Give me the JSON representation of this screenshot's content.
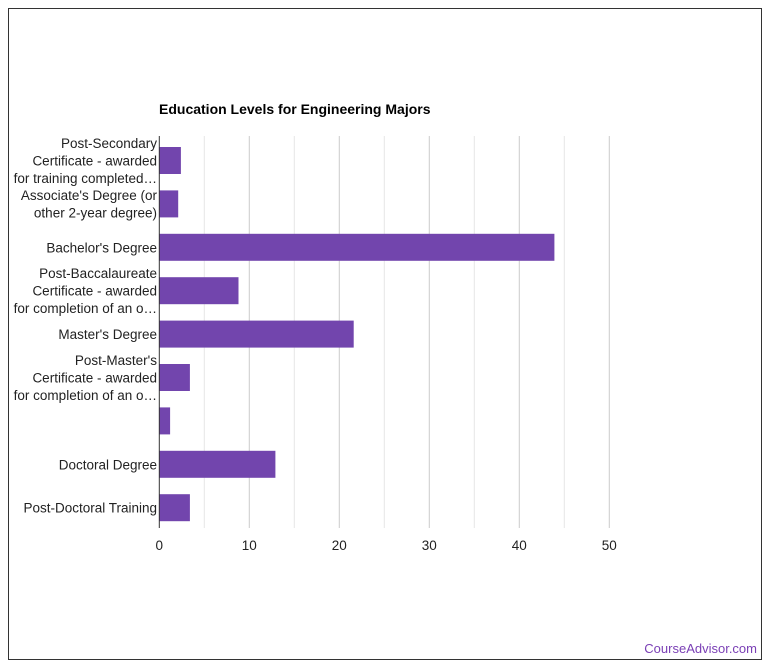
{
  "chart_data": {
    "type": "bar",
    "orientation": "horizontal",
    "title": "Education Levels for Engineering Majors",
    "categories": [
      [
        "Post-Secondary",
        "Certificate - awarded",
        "for training completed…"
      ],
      [
        "Associate's Degree (or",
        "other 2-year degree)"
      ],
      [
        "Bachelor's Degree"
      ],
      [
        "Post-Baccalaureate",
        "Certificate - awarded",
        "for completion of an o…"
      ],
      [
        "Master's Degree"
      ],
      [
        "Post-Master's",
        "Certificate - awarded",
        "for completion of an o…"
      ],
      [],
      [
        "Doctoral Degree"
      ],
      [
        "Post-Doctoral Training"
      ]
    ],
    "values": [
      2.4,
      2.1,
      43.9,
      8.8,
      21.6,
      3.4,
      1.2,
      12.9,
      3.4
    ],
    "xlim": [
      0,
      50
    ],
    "xticks": [
      0,
      10,
      20,
      30,
      40,
      50
    ],
    "grid": true,
    "bar_color": "#7245ad"
  },
  "credit": "CourseAdvisor.com"
}
